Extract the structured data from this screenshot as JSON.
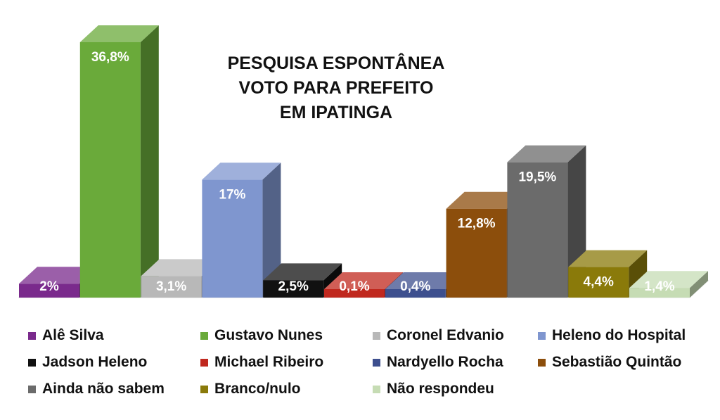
{
  "chart_data": {
    "type": "bar",
    "title": [
      "PESQUISA ESPONTÂNEA",
      "VOTO PARA PREFEITO",
      "EM IPATINGA"
    ],
    "categories": [
      "Alê Silva",
      "Gustavo Nunes",
      "Coronel Edvanio",
      "Heleno do Hospital",
      "Jadson Heleno",
      "Michael Ribeiro",
      "Nardyello Rocha",
      "Sebastião Quintão",
      "Ainda não sabem",
      "Branco/nulo",
      "Não respondeu"
    ],
    "values": [
      2,
      36.8,
      3.1,
      17,
      2.5,
      0.1,
      0.4,
      12.8,
      19.5,
      4.4,
      1.4
    ],
    "labels": [
      "2%",
      "36,8%",
      "3,1%",
      "17%",
      "2,5%",
      "0,1%",
      "0,4%",
      "12,8%",
      "19,5%",
      "4,4%",
      "1,4%"
    ],
    "unit": "%",
    "colors": [
      "#7a2a8c",
      "#6aaa3a",
      "#b8b8b8",
      "#7f96cf",
      "#111111",
      "#c0281e",
      "#3d4f8e",
      "#8c4e0c",
      "#6b6b6b",
      "#8a7a0a",
      "#c6dcb4"
    ],
    "ylim": [
      0,
      36.8
    ],
    "grid": false,
    "legend_position": "bottom"
  }
}
